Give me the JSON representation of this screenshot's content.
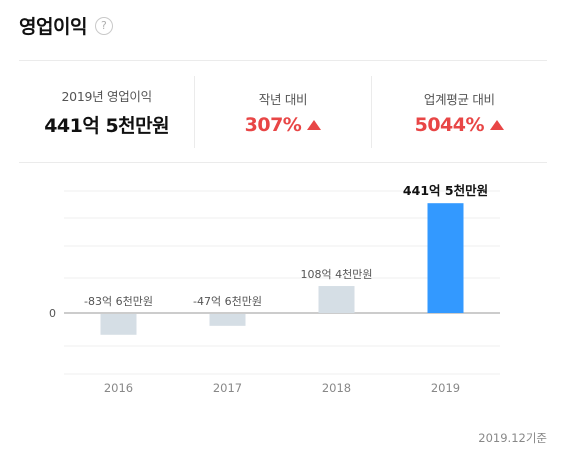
{
  "header": {
    "title": "영업이익",
    "help_glyph": "?"
  },
  "summary": {
    "current": {
      "label": "2019년 영업이익",
      "value": "441억 5천만원"
    },
    "yoy": {
      "label": "작년 대비",
      "value": "307%",
      "trend": "up"
    },
    "industry": {
      "label": "업계평균 대비",
      "value": "5044%",
      "trend": "up"
    }
  },
  "chart_data": {
    "type": "bar",
    "categories": [
      "2016",
      "2017",
      "2018",
      "2019"
    ],
    "values": [
      -83.6,
      -47.6,
      108.4,
      441.5
    ],
    "value_labels": [
      "-83억 6천만원",
      "-47억 6천만원",
      "108억 4천만원",
      "441억 5천만원"
    ],
    "bar_colors": [
      "#d5dee5",
      "#d5dee5",
      "#d5dee5",
      "#3399ff"
    ],
    "highlight_index": 3,
    "y_tick_label": "0",
    "grid": true,
    "legend": "none"
  },
  "footer": {
    "basis": "2019.12기준"
  },
  "colors": {
    "accent": "#3399ff",
    "up": "#e84646",
    "bar_muted": "#d5dee5"
  }
}
